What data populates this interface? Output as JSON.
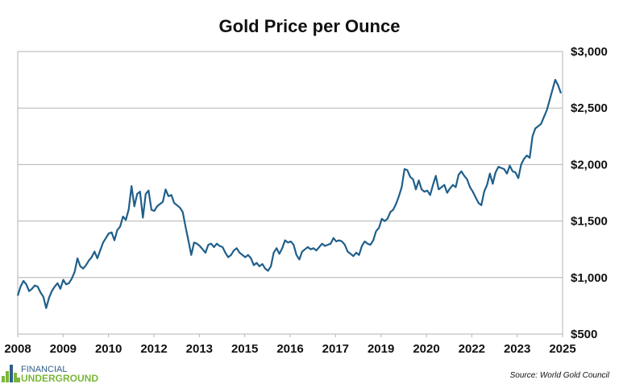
{
  "chart_data": {
    "type": "line",
    "title": "Gold Price per Ounce",
    "xlabel": "",
    "ylabel": "",
    "ylim": [
      500,
      3000
    ],
    "y_ticks": [
      500,
      1000,
      1500,
      2000,
      2500,
      3000
    ],
    "y_tick_labels": [
      "$500",
      "$1,000",
      "$1,500",
      "$2,000",
      "$2,500",
      "$3,000"
    ],
    "x_tick_labels": [
      "2008",
      "2009",
      "2010",
      "2012",
      "2013",
      "2015",
      "2016",
      "2017",
      "2019",
      "2020",
      "2022",
      "2023",
      "2025"
    ],
    "y_axis_side": "right",
    "grid": "horizontal",
    "line_color": "#1f5f8b",
    "series": [
      {
        "values": [
          840,
          920,
          970,
          940,
          880,
          900,
          930,
          920,
          870,
          830,
          730,
          820,
          880,
          920,
          950,
          900,
          980,
          940,
          950,
          990,
          1050,
          1170,
          1100,
          1080,
          1110,
          1150,
          1180,
          1230,
          1170,
          1240,
          1310,
          1350,
          1390,
          1400,
          1330,
          1420,
          1450,
          1540,
          1510,
          1600,
          1810,
          1630,
          1740,
          1760,
          1530,
          1740,
          1770,
          1600,
          1590,
          1630,
          1650,
          1670,
          1780,
          1720,
          1730,
          1660,
          1640,
          1620,
          1580,
          1450,
          1330,
          1200,
          1310,
          1300,
          1280,
          1250,
          1220,
          1290,
          1300,
          1270,
          1300,
          1280,
          1270,
          1220,
          1180,
          1200,
          1240,
          1260,
          1220,
          1200,
          1180,
          1200,
          1170,
          1110,
          1130,
          1100,
          1120,
          1080,
          1060,
          1100,
          1220,
          1260,
          1210,
          1260,
          1330,
          1310,
          1320,
          1290,
          1200,
          1160,
          1230,
          1250,
          1270,
          1250,
          1260,
          1240,
          1270,
          1300,
          1280,
          1290,
          1300,
          1350,
          1320,
          1330,
          1320,
          1290,
          1230,
          1210,
          1190,
          1220,
          1200,
          1280,
          1320,
          1300,
          1290,
          1330,
          1410,
          1440,
          1520,
          1500,
          1520,
          1580,
          1600,
          1650,
          1720,
          1800,
          1960,
          1950,
          1890,
          1870,
          1780,
          1860,
          1780,
          1760,
          1770,
          1730,
          1820,
          1900,
          1780,
          1800,
          1820,
          1750,
          1790,
          1820,
          1800,
          1910,
          1940,
          1900,
          1870,
          1800,
          1760,
          1710,
          1660,
          1640,
          1760,
          1820,
          1920,
          1830,
          1930,
          1980,
          1970,
          1960,
          1920,
          1990,
          1940,
          1930,
          1880,
          2000,
          2050,
          2080,
          2060,
          2250,
          2320,
          2340,
          2360,
          2420,
          2480,
          2570,
          2660,
          2750,
          2700,
          2630
        ]
      }
    ]
  },
  "logo": {
    "line1": "FINANCIAL",
    "line2": "UNDERGROUND",
    "colors": [
      "#2f5f8a",
      "#7bb63a"
    ]
  },
  "source": "Source: World Gold Council"
}
